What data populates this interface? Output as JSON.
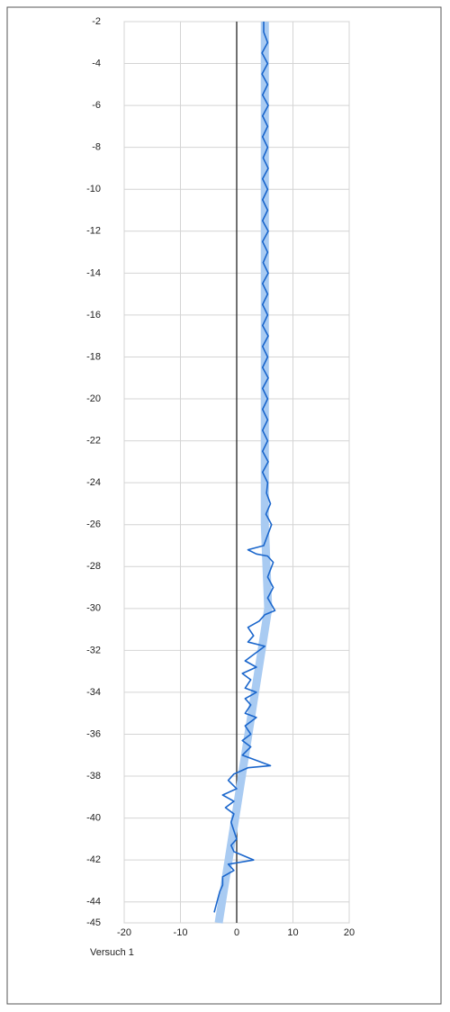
{
  "chart_data": {
    "type": "line",
    "xlim": [
      -20,
      20
    ],
    "xticks": [
      -20,
      -10,
      0,
      10,
      20
    ],
    "ylim": [
      -45,
      -2
    ],
    "yticks": [
      -2,
      -4,
      -6,
      -8,
      -10,
      -12,
      -14,
      -16,
      -18,
      -20,
      -22,
      -24,
      -26,
      -28,
      -30,
      -32,
      -34,
      -36,
      -38,
      -40,
      -42,
      -44,
      -45
    ],
    "grid": true,
    "zero_line": true,
    "series": [
      {
        "color": "#a9cbf2",
        "line_width": 9,
        "x": [
          5,
          5,
          5.6,
          -3.2
        ],
        "values": [
          -2,
          -26,
          -30,
          -45
        ]
      },
      {
        "name": "Versuch 1",
        "color": "#1a66cc",
        "line_width": 1.6,
        "x": [
          4.8,
          4.8,
          5.5,
          4.5,
          5.5,
          4.5,
          5.5,
          4.6,
          5.6,
          4.6,
          5.5,
          4.6,
          5.5,
          4.7,
          5.6,
          4.6,
          5.5,
          4.6,
          5.5,
          4.6,
          5.6,
          4.6,
          5.5,
          4.7,
          5.6,
          4.6,
          5.5,
          4.6,
          5.5,
          4.6,
          5.6,
          4.6,
          5.5,
          4.6,
          5.6,
          4.6,
          5.5,
          4.6,
          5.5,
          4.6,
          5.5,
          4.6,
          5.6,
          4.6,
          5.5,
          5.3,
          6,
          5.2,
          6.2,
          5.5,
          4.8,
          2,
          3.5,
          5.5,
          6.5,
          5.5,
          6.5,
          5.5,
          6.8,
          5,
          4,
          2,
          3,
          2,
          5,
          3,
          1.5,
          3.5,
          1,
          2.5,
          1.5,
          3.5,
          1.5,
          2.5,
          1.5,
          3.5,
          1.5,
          2.5,
          1,
          2.5,
          1,
          3,
          6,
          2,
          -0.5,
          -1.5,
          0,
          -2.5,
          -0.5,
          -2,
          -0.5,
          -1,
          -0.5,
          0,
          -1,
          -0.5,
          3,
          -1.5,
          -0.5,
          -2.5,
          -2.5,
          -3,
          -3.5,
          -4
        ],
        "values": [
          -2,
          -2.5,
          -3,
          -3.5,
          -4,
          -4.5,
          -5,
          -5.5,
          -6,
          -6.5,
          -7,
          -7.5,
          -8,
          -8.5,
          -9,
          -9.5,
          -10,
          -10.5,
          -11,
          -11.5,
          -12,
          -12.5,
          -13,
          -13.5,
          -14,
          -14.5,
          -15,
          -15.5,
          -16,
          -16.5,
          -17,
          -17.5,
          -18,
          -18.5,
          -19,
          -19.5,
          -20,
          -20.5,
          -21,
          -21.5,
          -22,
          -22.5,
          -23,
          -23.5,
          -24,
          -24.5,
          -25,
          -25.5,
          -26,
          -26.5,
          -27,
          -27.2,
          -27.4,
          -27.5,
          -27.8,
          -28.5,
          -29,
          -29.5,
          -30.1,
          -30.3,
          -30.6,
          -30.9,
          -31.3,
          -31.6,
          -31.8,
          -32.2,
          -32.5,
          -32.8,
          -33.1,
          -33.4,
          -33.8,
          -34,
          -34.3,
          -34.6,
          -35,
          -35.2,
          -35.6,
          -36,
          -36.3,
          -36.6,
          -37,
          -37.2,
          -37.5,
          -37.6,
          -37.9,
          -38.2,
          -38.6,
          -38.9,
          -39.2,
          -39.5,
          -39.8,
          -40.2,
          -40.6,
          -41,
          -41.3,
          -41.6,
          -42,
          -42.2,
          -42.5,
          -42.8,
          -43.2,
          -43.5,
          -44,
          -44.5
        ]
      }
    ]
  }
}
